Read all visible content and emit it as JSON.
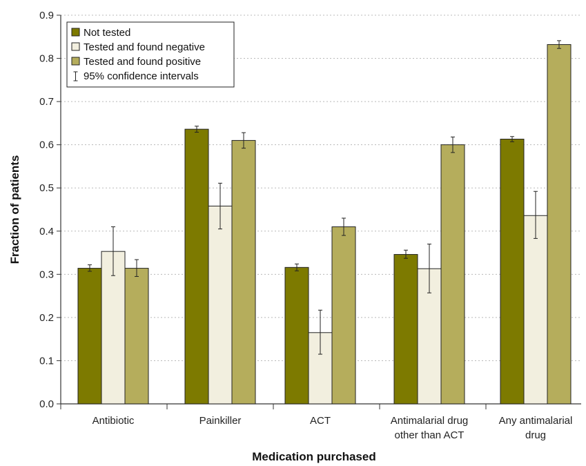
{
  "chart_data": {
    "type": "bar",
    "title": "",
    "xlabel": "Medication purchased",
    "ylabel": "Fraction of patients",
    "ylim": [
      0,
      0.9
    ],
    "yticks": [
      "0.0",
      "0.1",
      "0.2",
      "0.3",
      "0.4",
      "0.5",
      "0.6",
      "0.7",
      "0.8",
      "0.9"
    ],
    "grid": "horizontal dotted",
    "legend_position": "top-left",
    "categories": [
      [
        "Antibiotic"
      ],
      [
        "Painkiller"
      ],
      [
        "ACT"
      ],
      [
        "Antimalarial drug",
        "other than ACT"
      ],
      [
        "Any  antimalarial",
        "drug"
      ]
    ],
    "series": [
      {
        "name": "Not tested",
        "color": "#7d7a00",
        "values": [
          0.314,
          0.636,
          0.316,
          0.346,
          0.613
        ],
        "ci_low": [
          0.307,
          0.629,
          0.308,
          0.337,
          0.607
        ],
        "ci_high": [
          0.322,
          0.643,
          0.324,
          0.356,
          0.619
        ]
      },
      {
        "name": "Tested and found negative",
        "color": "#f2efdf",
        "values": [
          0.353,
          0.458,
          0.165,
          0.313,
          0.436
        ],
        "ci_low": [
          0.297,
          0.405,
          0.115,
          0.257,
          0.383
        ],
        "ci_high": [
          0.41,
          0.511,
          0.217,
          0.37,
          0.492
        ]
      },
      {
        "name": "Tested and found positive",
        "color": "#b5ad5c",
        "values": [
          0.314,
          0.61,
          0.41,
          0.6,
          0.832
        ],
        "ci_low": [
          0.295,
          0.592,
          0.39,
          0.582,
          0.823
        ],
        "ci_high": [
          0.334,
          0.628,
          0.43,
          0.618,
          0.841
        ]
      }
    ],
    "ci_legend_label": "95% confidence intervals"
  }
}
